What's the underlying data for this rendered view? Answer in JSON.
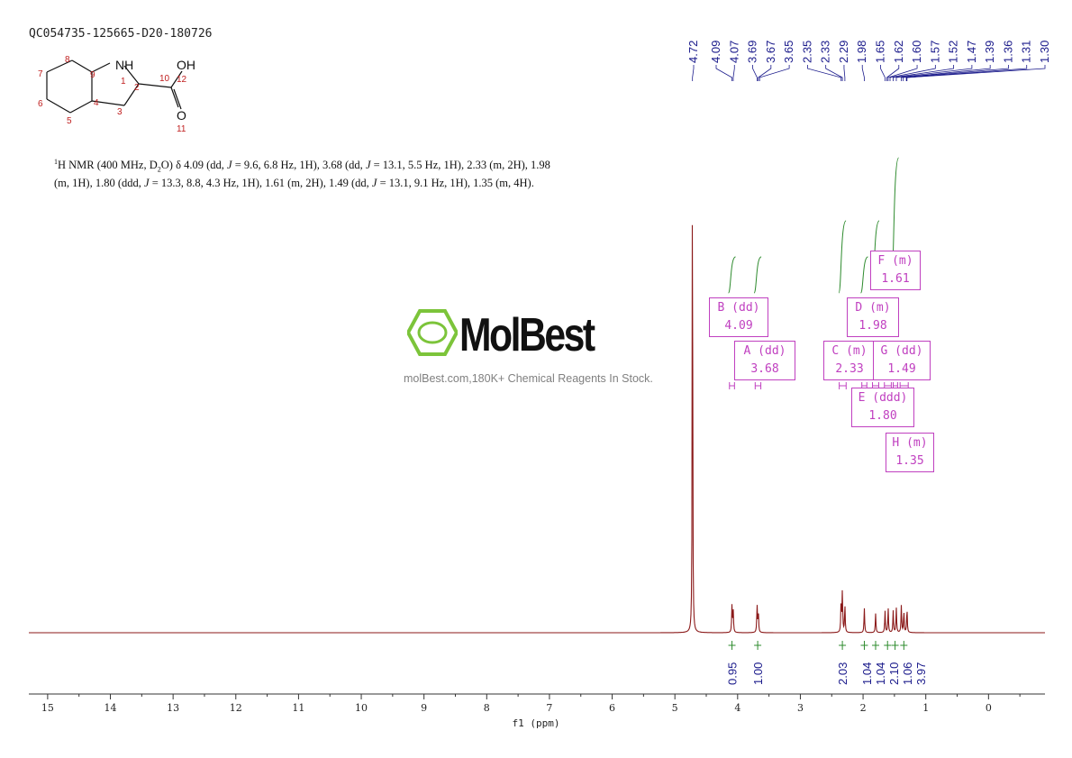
{
  "sample_id": "QC054735-125665-D20-180726",
  "nmr_description": {
    "nucleus_sup": "1",
    "part1": "H NMR (400 MHz, D",
    "sub": "2",
    "part2": "O) δ 4.09 (dd, ",
    "j": "J",
    "part3": " = 9.6, 6.8 Hz, 1H), 3.68 (dd, ",
    "part4": " = 13.1, 5.5 Hz, 1H), 2.33 (m, 2H), 1.98 (m, 1H), 1.80 (ddd, ",
    "part5": " = 13.3, 8.8, 4.3 Hz, 1H), 1.61 (m, 2H), 1.49 (dd, ",
    "part6": " = 13.1, 9.1 Hz, 1H), 1.35 (m, 4H)."
  },
  "structure": {
    "nh_label": "NH",
    "oh_label": "OH",
    "o_label": "O",
    "atom_numbers": [
      "1",
      "2",
      "3",
      "4",
      "5",
      "6",
      "7",
      "8",
      "9",
      "10",
      "11",
      "12"
    ]
  },
  "watermark": {
    "brand": "MolBest",
    "tagline": "molBest.com,180K+ Chemical Reagents In Stock."
  },
  "multiplets": [
    {
      "label": "B (dd)",
      "shift": "4.09"
    },
    {
      "label": "A (dd)",
      "shift": "3.68"
    },
    {
      "label": "C (m)",
      "shift": "2.33"
    },
    {
      "label": "D (m)",
      "shift": "1.98"
    },
    {
      "label": "F (m)",
      "shift": "1.61"
    },
    {
      "label": "G (dd)",
      "shift": "1.49"
    },
    {
      "label": "E (ddd)",
      "shift": "1.80"
    },
    {
      "label": "H (m)",
      "shift": "1.35"
    }
  ],
  "colors": {
    "spectrum": "#8b1a1a",
    "integral": "#2e8b2e",
    "label": "#1a1a8b",
    "box": "#c040c0"
  },
  "chart_data": {
    "type": "line",
    "xlabel": "f1 (ppm)",
    "x_reversed": true,
    "xlim": [
      15.3,
      -0.9
    ],
    "x_ticks": [
      15,
      14,
      13,
      12,
      11,
      10,
      9,
      8,
      7,
      6,
      5,
      4,
      3,
      2,
      1,
      0
    ],
    "peak_labels": [
      "4.72",
      "4.09",
      "4.07",
      "3.69",
      "3.67",
      "3.65",
      "2.35",
      "2.33",
      "2.29",
      "1.98",
      "1.65",
      "1.62",
      "1.60",
      "1.57",
      "1.52",
      "1.47",
      "1.39",
      "1.36",
      "1.31",
      "1.30"
    ],
    "peaks": [
      {
        "ppm": 4.72,
        "height": 1.0
      },
      {
        "ppm": 4.09,
        "height": 0.05
      },
      {
        "ppm": 4.07,
        "height": 0.04
      },
      {
        "ppm": 3.69,
        "height": 0.05
      },
      {
        "ppm": 3.67,
        "height": 0.04
      },
      {
        "ppm": 2.35,
        "height": 0.06
      },
      {
        "ppm": 2.33,
        "height": 0.075
      },
      {
        "ppm": 2.29,
        "height": 0.05
      },
      {
        "ppm": 1.98,
        "height": 0.045
      },
      {
        "ppm": 1.8,
        "height": 0.035
      },
      {
        "ppm": 1.65,
        "height": 0.04
      },
      {
        "ppm": 1.6,
        "height": 0.045
      },
      {
        "ppm": 1.52,
        "height": 0.04
      },
      {
        "ppm": 1.47,
        "height": 0.045
      },
      {
        "ppm": 1.39,
        "height": 0.05
      },
      {
        "ppm": 1.35,
        "height": 0.04
      },
      {
        "ppm": 1.3,
        "height": 0.045
      }
    ],
    "integrals": [
      {
        "ppm": 4.09,
        "value": "0.95"
      },
      {
        "ppm": 3.68,
        "value": "1.00"
      },
      {
        "ppm": 2.33,
        "value": "2.03"
      },
      {
        "ppm": 1.98,
        "value": "1.04"
      },
      {
        "ppm": 1.8,
        "value": "1.04"
      },
      {
        "ppm": 1.61,
        "value": "2.10"
      },
      {
        "ppm": 1.49,
        "value": "1.06"
      },
      {
        "ppm": 1.35,
        "value": "3.97"
      }
    ]
  }
}
